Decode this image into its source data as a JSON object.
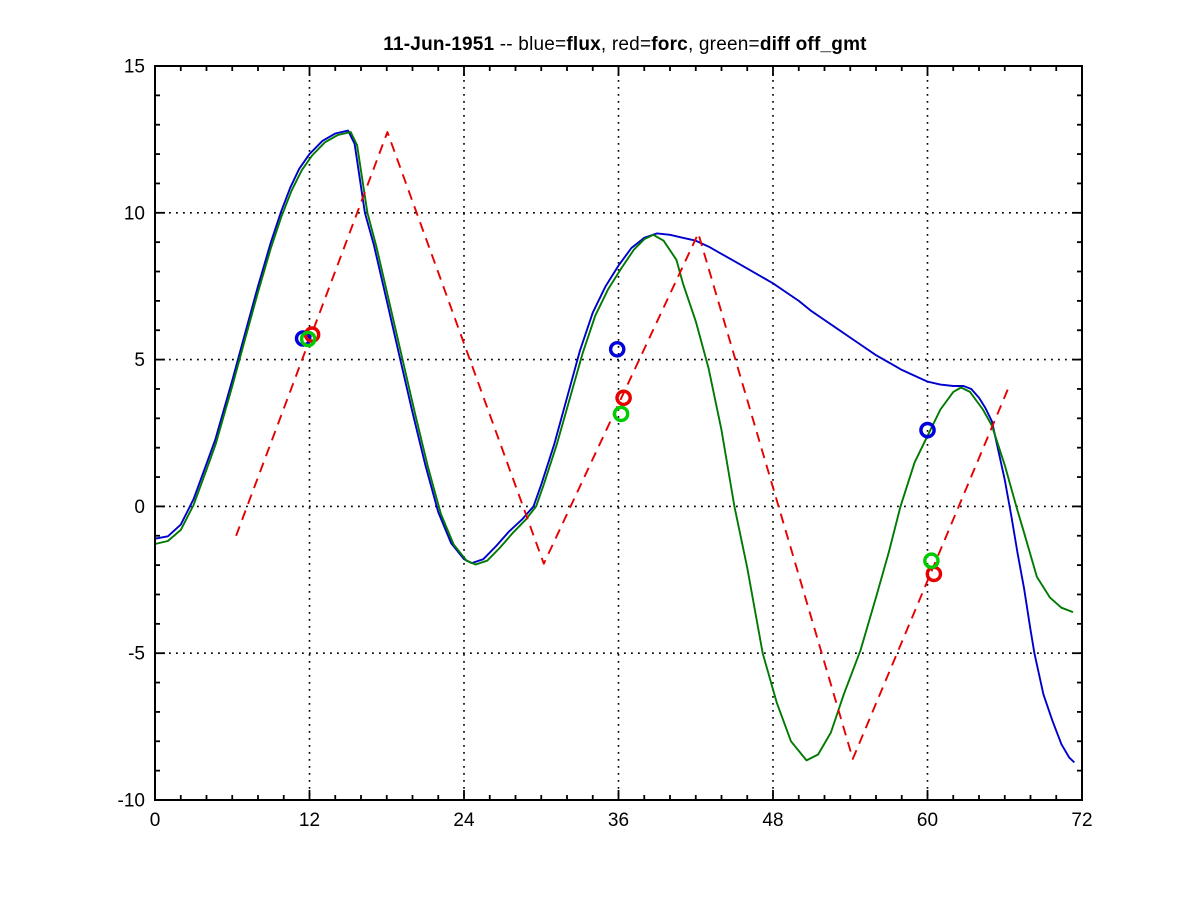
{
  "figure": {
    "background": "#ffffff",
    "axis_color": "#000000",
    "grid_style": "dotted"
  },
  "chart_data": {
    "type": "line",
    "title_plain": "11-Jun-1951 -- blue=flux, red=forc, green=diff off_gmt",
    "title_segments": [
      {
        "text": "11-Jun-1951",
        "bold": true
      },
      {
        "text": " -- blue=",
        "bold": false
      },
      {
        "text": "flux",
        "bold": true
      },
      {
        "text": ", red=",
        "bold": false
      },
      {
        "text": "forc",
        "bold": true
      },
      {
        "text": ", green=",
        "bold": false
      },
      {
        "text": "diff off_gmt",
        "bold": true
      }
    ],
    "xlim": [
      0,
      72
    ],
    "ylim": [
      -10,
      15
    ],
    "x_major_ticks": [
      0,
      12,
      24,
      36,
      48,
      60,
      72
    ],
    "x_tick_labels": [
      "0",
      "12",
      "24",
      "36",
      "48",
      "60",
      "72"
    ],
    "x_minor_step": 2,
    "y_major_ticks": [
      -10,
      -5,
      0,
      5,
      10,
      15
    ],
    "y_tick_labels": [
      "-10",
      "-5",
      "0",
      "5",
      "10",
      "15"
    ],
    "y_minor_step": 1,
    "grid_x_lines": [
      12,
      24,
      36,
      48,
      60
    ],
    "grid_y_lines": [
      -5,
      0,
      5,
      10
    ],
    "series": [
      {
        "name": "flux",
        "color": "#0000cc",
        "line_style": "solid",
        "points": [
          [
            0,
            -1.1
          ],
          [
            1,
            -1.02
          ],
          [
            2,
            -0.62
          ],
          [
            3,
            0.25
          ],
          [
            4,
            1.45
          ],
          [
            4.7,
            2.3
          ],
          [
            6,
            4.3
          ],
          [
            7,
            5.9
          ],
          [
            8,
            7.5
          ],
          [
            9,
            9.0
          ],
          [
            9.8,
            10.05
          ],
          [
            10.5,
            10.85
          ],
          [
            11.2,
            11.5
          ],
          [
            12,
            12.0
          ],
          [
            13,
            12.45
          ],
          [
            14,
            12.7
          ],
          [
            15,
            12.8
          ],
          [
            15.5,
            12.35
          ],
          [
            16.3,
            10.0
          ],
          [
            17,
            8.9
          ],
          [
            18,
            7.0
          ],
          [
            19,
            5.1
          ],
          [
            20,
            3.2
          ],
          [
            21,
            1.4
          ],
          [
            22,
            -0.2
          ],
          [
            23,
            -1.25
          ],
          [
            24,
            -1.8
          ],
          [
            24.6,
            -1.93
          ],
          [
            25.5,
            -1.8
          ],
          [
            26.5,
            -1.35
          ],
          [
            27.5,
            -0.85
          ],
          [
            28.5,
            -0.45
          ],
          [
            29.4,
            0.0
          ],
          [
            30,
            0.75
          ],
          [
            31,
            2.1
          ],
          [
            32,
            3.7
          ],
          [
            33,
            5.3
          ],
          [
            34,
            6.6
          ],
          [
            35,
            7.5
          ],
          [
            36,
            8.2
          ],
          [
            37,
            8.8
          ],
          [
            38,
            9.15
          ],
          [
            39,
            9.3
          ],
          [
            40,
            9.25
          ],
          [
            41,
            9.15
          ],
          [
            42,
            9.05
          ],
          [
            43,
            8.85
          ],
          [
            44,
            8.6
          ],
          [
            45,
            8.35
          ],
          [
            46,
            8.1
          ],
          [
            47,
            7.85
          ],
          [
            48,
            7.6
          ],
          [
            49,
            7.3
          ],
          [
            50,
            7.0
          ],
          [
            51,
            6.65
          ],
          [
            52,
            6.35
          ],
          [
            53,
            6.05
          ],
          [
            54,
            5.75
          ],
          [
            55,
            5.45
          ],
          [
            56,
            5.15
          ],
          [
            57,
            4.9
          ],
          [
            58,
            4.65
          ],
          [
            59,
            4.45
          ],
          [
            60,
            4.25
          ],
          [
            61,
            4.15
          ],
          [
            62,
            4.1
          ],
          [
            62.8,
            4.1
          ],
          [
            63.4,
            4.0
          ],
          [
            64,
            3.7
          ],
          [
            64.5,
            3.35
          ],
          [
            65,
            2.9
          ],
          [
            66,
            0.9
          ],
          [
            66.5,
            -0.3
          ],
          [
            67,
            -1.6
          ],
          [
            67.5,
            -2.8
          ],
          [
            68,
            -4.2
          ],
          [
            68.3,
            -5.0
          ],
          [
            69,
            -6.4
          ],
          [
            69.7,
            -7.3
          ],
          [
            70.4,
            -8.1
          ],
          [
            71,
            -8.55
          ],
          [
            71.4,
            -8.72
          ]
        ]
      },
      {
        "name": "diff",
        "color": "#007a00",
        "line_style": "solid",
        "points": [
          [
            0,
            -1.28
          ],
          [
            1,
            -1.18
          ],
          [
            2,
            -0.8
          ],
          [
            3,
            0.05
          ],
          [
            4,
            1.25
          ],
          [
            4.7,
            2.1
          ],
          [
            6,
            4.1
          ],
          [
            7,
            5.7
          ],
          [
            8,
            7.3
          ],
          [
            9,
            8.8
          ],
          [
            9.8,
            9.85
          ],
          [
            10.6,
            10.75
          ],
          [
            11.4,
            11.45
          ],
          [
            12.2,
            11.95
          ],
          [
            13.2,
            12.4
          ],
          [
            14.2,
            12.65
          ],
          [
            15.2,
            12.75
          ],
          [
            15.7,
            12.3
          ],
          [
            16.5,
            10.0
          ],
          [
            17.2,
            8.85
          ],
          [
            18.2,
            6.95
          ],
          [
            19.2,
            5.05
          ],
          [
            20.2,
            3.15
          ],
          [
            21.2,
            1.35
          ],
          [
            22.2,
            -0.25
          ],
          [
            23.2,
            -1.3
          ],
          [
            24.2,
            -1.85
          ],
          [
            24.9,
            -1.98
          ],
          [
            25.8,
            -1.85
          ],
          [
            26.8,
            -1.4
          ],
          [
            27.8,
            -0.9
          ],
          [
            28.8,
            -0.45
          ],
          [
            29.6,
            0.0
          ],
          [
            30.2,
            0.75
          ],
          [
            31.2,
            2.1
          ],
          [
            32.2,
            3.65
          ],
          [
            33.2,
            5.2
          ],
          [
            34.2,
            6.5
          ],
          [
            35.2,
            7.4
          ],
          [
            36.2,
            8.1
          ],
          [
            37.2,
            8.75
          ],
          [
            38,
            9.1
          ],
          [
            38.7,
            9.25
          ],
          [
            39.5,
            9.05
          ],
          [
            40.5,
            8.4
          ],
          [
            41,
            7.6
          ],
          [
            42,
            6.3
          ],
          [
            43,
            4.7
          ],
          [
            44,
            2.6
          ],
          [
            45,
            0.0
          ],
          [
            46,
            -2.1
          ],
          [
            47.2,
            -5.0
          ],
          [
            48.3,
            -6.7
          ],
          [
            49.4,
            -8.0
          ],
          [
            50.6,
            -8.65
          ],
          [
            51.5,
            -8.45
          ],
          [
            52.5,
            -7.7
          ],
          [
            53.5,
            -6.4
          ],
          [
            54.8,
            -4.9
          ],
          [
            56,
            -3.1
          ],
          [
            57,
            -1.55
          ],
          [
            57.9,
            0.0
          ],
          [
            59,
            1.5
          ],
          [
            60,
            2.4
          ],
          [
            61,
            3.3
          ],
          [
            62,
            3.9
          ],
          [
            62.6,
            4.05
          ],
          [
            63.3,
            3.9
          ],
          [
            64.3,
            3.3
          ],
          [
            65,
            2.75
          ],
          [
            66,
            1.4
          ],
          [
            66.9,
            0.0
          ],
          [
            67.5,
            -0.9
          ],
          [
            68.5,
            -2.4
          ],
          [
            69.5,
            -3.1
          ],
          [
            70.4,
            -3.45
          ],
          [
            71.3,
            -3.6
          ]
        ]
      },
      {
        "name": "forc",
        "color": "#e60000",
        "line_style": "dashed",
        "points": [
          [
            6.3,
            -1.0
          ],
          [
            18.05,
            12.75
          ],
          [
            30.2,
            -1.95
          ],
          [
            42.2,
            9.3
          ],
          [
            54.2,
            -8.6
          ],
          [
            66.3,
            4.05
          ]
        ]
      }
    ],
    "markers": [
      {
        "name": "flux-points",
        "color": "#0000dd",
        "points": [
          [
            11.5,
            5.72
          ],
          [
            35.9,
            5.35
          ],
          [
            60.0,
            2.6
          ]
        ]
      },
      {
        "name": "forc-points",
        "color": "#e60000",
        "points": [
          [
            12.2,
            5.85
          ],
          [
            36.4,
            3.7
          ],
          [
            60.5,
            -2.3
          ]
        ]
      },
      {
        "name": "diff-points",
        "color": "#00cc00",
        "points": [
          [
            11.9,
            5.7
          ],
          [
            36.2,
            3.15
          ],
          [
            60.3,
            -1.85
          ]
        ]
      }
    ]
  }
}
